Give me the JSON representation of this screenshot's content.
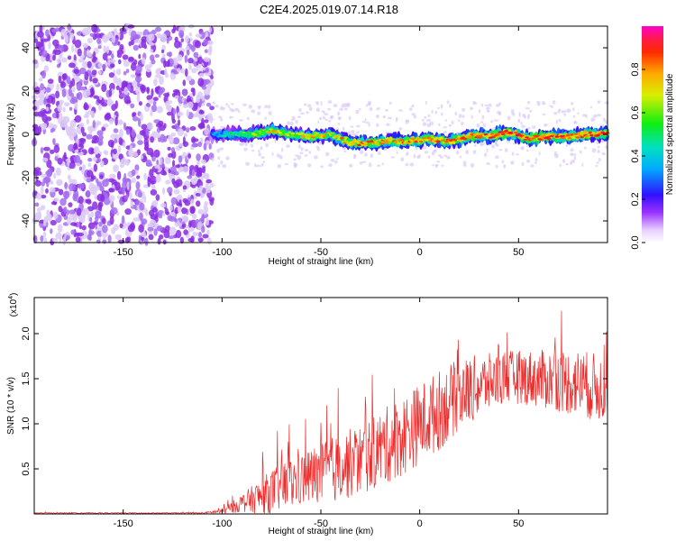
{
  "title": "C2E4.2025.019.07.14.R18",
  "colors": {
    "line": "#ee2a2a",
    "frame": "#000000",
    "scatter_purple": "#8a2be2",
    "scatter_light": "#d9c6f5"
  },
  "chart_data": [
    {
      "type": "heatmap",
      "xlabel": "Height of straight line (km)",
      "ylabel": "Frequency (Hz)",
      "xlim": [
        -195,
        95
      ],
      "ylim": [
        -50,
        50
      ],
      "x_ticks": [
        -150,
        -100,
        -50,
        0,
        50
      ],
      "x_tick_labels": [
        "-150",
        "-100",
        "-50",
        "0",
        "50"
      ],
      "y_ticks": [
        -40,
        -20,
        0,
        20,
        40
      ],
      "y_tick_labels": [
        "-40",
        "-20",
        "0",
        "20",
        "40"
      ],
      "noise_region": {
        "x_range": [
          -195,
          -105
        ],
        "y_range": [
          -50,
          50
        ]
      },
      "signal_trace": {
        "x": [
          -105,
          -95,
          -85,
          -75,
          -65,
          -55,
          -45,
          -35,
          -25,
          -15,
          -5,
          5,
          15,
          25,
          35,
          45,
          55,
          65,
          75,
          85,
          95
        ],
        "frequency": [
          0,
          0,
          0,
          2,
          0,
          -1,
          0,
          -4,
          -4,
          -3,
          -3,
          -2,
          -3,
          -1,
          -1,
          1,
          -2,
          -1,
          -1,
          0,
          0
        ],
        "peak_amplitude": [
          0.35,
          0.5,
          0.65,
          0.75,
          0.7,
          0.8,
          0.75,
          0.85,
          0.85,
          0.8,
          0.85,
          0.85,
          0.85,
          0.9,
          0.9,
          0.95,
          0.95,
          0.95,
          0.95,
          0.9,
          0.9
        ]
      },
      "colorbar": {
        "label": "Normalized spectral amplitude",
        "ticks": [
          0.0,
          0.2,
          0.4,
          0.6,
          0.8
        ],
        "tick_labels": [
          "0.0",
          "0.2",
          "0.4",
          "0.6",
          "0.8"
        ],
        "range": [
          0,
          1
        ]
      }
    },
    {
      "type": "line",
      "xlabel": "Height of straight line (km)",
      "ylabel": "SNR (10 * v/v)",
      "y_scale_label": "(x10",
      "y_scale_exponent": "4",
      "y_scale_suffix": ")",
      "xlim": [
        -195,
        95
      ],
      "ylim": [
        0,
        2.4
      ],
      "x_ticks": [
        -150,
        -100,
        -50,
        0,
        50
      ],
      "x_tick_labels": [
        "-150",
        "-100",
        "-50",
        "0",
        "50"
      ],
      "y_ticks": [
        0.5,
        1.0,
        1.5,
        2.0
      ],
      "y_tick_labels": [
        "0.5",
        "1.0",
        "1.5",
        "2.0"
      ],
      "envelope": {
        "x": [
          -195,
          -110,
          -100,
          -90,
          -80,
          -70,
          -60,
          -50,
          -40,
          -30,
          -20,
          -10,
          0,
          10,
          20,
          30,
          40,
          50,
          60,
          70,
          80,
          90,
          95
        ],
        "mean": [
          0.01,
          0.01,
          0.03,
          0.12,
          0.2,
          0.3,
          0.38,
          0.45,
          0.52,
          0.6,
          0.72,
          0.85,
          1.0,
          1.15,
          1.32,
          1.42,
          1.5,
          1.52,
          1.5,
          1.48,
          1.45,
          1.4,
          1.4
        ],
        "spread": [
          0.005,
          0.005,
          0.03,
          0.1,
          0.2,
          0.28,
          0.3,
          0.35,
          0.38,
          0.4,
          0.42,
          0.45,
          0.45,
          0.45,
          0.4,
          0.35,
          0.3,
          0.3,
          0.32,
          0.35,
          0.38,
          0.38,
          0.38
        ]
      }
    }
  ]
}
